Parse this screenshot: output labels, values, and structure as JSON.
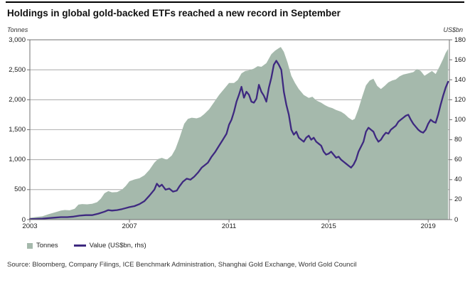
{
  "header": {
    "title": "Holdings in global gold-backed ETFs reached a new record in September"
  },
  "axes": {
    "left_unit": "Tonnes",
    "right_unit": "US$bn"
  },
  "legend": {
    "items": [
      {
        "label": "Tonnes",
        "swatch": "area-square"
      },
      {
        "label": "Value (US$bn, rhs)",
        "swatch": "line-dash"
      }
    ]
  },
  "source": "Source: Bloomberg, Company Filings, ICE Benchmark Administration, Shanghai Gold Exchange, World Gold Council",
  "colors": {
    "area": "#a5b9ac",
    "line": "#3e2980",
    "grid": "#9a9a9a",
    "axis": "#707070"
  },
  "chart_data": {
    "type": "area+line",
    "title": "Holdings in global gold-backed ETFs reached a new record in September",
    "x_range": [
      2003,
      2019.85
    ],
    "x_ticks": [
      2003,
      2007,
      2011,
      2015,
      2019
    ],
    "x_tick_labels": [
      "2003",
      "2007",
      "2011",
      "2015",
      "2019"
    ],
    "grid": "horizontal-only",
    "legend_position": "bottom-left",
    "left_axis": {
      "label": "Tonnes",
      "range": [
        0,
        3000
      ],
      "tick_step": 500,
      "tick_labels": [
        "0",
        "500",
        "1,000",
        "1,500",
        "2,000",
        "2,500",
        "3,000"
      ]
    },
    "right_axis": {
      "label": "US$bn",
      "range": [
        0,
        180
      ],
      "tick_step": 20,
      "tick_labels": [
        "0",
        "20",
        "40",
        "60",
        "80",
        "100",
        "120",
        "140",
        "160",
        "180"
      ]
    },
    "series": [
      {
        "name": "Tonnes",
        "type": "area",
        "axis": "left",
        "points": [
          [
            2003.0,
            30
          ],
          [
            2003.25,
            45
          ],
          [
            2003.5,
            55
          ],
          [
            2003.75,
            90
          ],
          [
            2004.0,
            120
          ],
          [
            2004.25,
            150
          ],
          [
            2004.4,
            160
          ],
          [
            2004.6,
            155
          ],
          [
            2004.8,
            180
          ],
          [
            2004.95,
            250
          ],
          [
            2005.1,
            260
          ],
          [
            2005.3,
            255
          ],
          [
            2005.5,
            265
          ],
          [
            2005.7,
            290
          ],
          [
            2005.85,
            350
          ],
          [
            2006.0,
            440
          ],
          [
            2006.15,
            475
          ],
          [
            2006.3,
            455
          ],
          [
            2006.5,
            460
          ],
          [
            2006.7,
            500
          ],
          [
            2006.85,
            560
          ],
          [
            2007.0,
            640
          ],
          [
            2007.2,
            670
          ],
          [
            2007.4,
            690
          ],
          [
            2007.6,
            740
          ],
          [
            2007.8,
            830
          ],
          [
            2008.0,
            950
          ],
          [
            2008.15,
            1010
          ],
          [
            2008.3,
            1030
          ],
          [
            2008.5,
            1000
          ],
          [
            2008.7,
            1070
          ],
          [
            2008.85,
            1180
          ],
          [
            2009.0,
            1350
          ],
          [
            2009.2,
            1600
          ],
          [
            2009.35,
            1680
          ],
          [
            2009.5,
            1700
          ],
          [
            2009.7,
            1690
          ],
          [
            2009.85,
            1710
          ],
          [
            2010.0,
            1760
          ],
          [
            2010.2,
            1840
          ],
          [
            2010.4,
            1960
          ],
          [
            2010.6,
            2080
          ],
          [
            2010.8,
            2180
          ],
          [
            2011.0,
            2280
          ],
          [
            2011.2,
            2280
          ],
          [
            2011.35,
            2330
          ],
          [
            2011.5,
            2440
          ],
          [
            2011.65,
            2480
          ],
          [
            2011.8,
            2490
          ],
          [
            2012.0,
            2520
          ],
          [
            2012.15,
            2560
          ],
          [
            2012.3,
            2550
          ],
          [
            2012.5,
            2610
          ],
          [
            2012.7,
            2760
          ],
          [
            2012.85,
            2820
          ],
          [
            2013.0,
            2860
          ],
          [
            2013.08,
            2880
          ],
          [
            2013.2,
            2800
          ],
          [
            2013.35,
            2620
          ],
          [
            2013.5,
            2400
          ],
          [
            2013.65,
            2280
          ],
          [
            2013.8,
            2180
          ],
          [
            2014.0,
            2080
          ],
          [
            2014.2,
            2030
          ],
          [
            2014.35,
            2050
          ],
          [
            2014.5,
            1990
          ],
          [
            2014.7,
            1950
          ],
          [
            2014.85,
            1910
          ],
          [
            2015.0,
            1880
          ],
          [
            2015.15,
            1860
          ],
          [
            2015.3,
            1830
          ],
          [
            2015.5,
            1800
          ],
          [
            2015.65,
            1760
          ],
          [
            2015.8,
            1700
          ],
          [
            2015.95,
            1660
          ],
          [
            2016.05,
            1680
          ],
          [
            2016.2,
            1850
          ],
          [
            2016.35,
            2050
          ],
          [
            2016.5,
            2240
          ],
          [
            2016.65,
            2320
          ],
          [
            2016.8,
            2350
          ],
          [
            2016.95,
            2230
          ],
          [
            2017.1,
            2180
          ],
          [
            2017.25,
            2230
          ],
          [
            2017.4,
            2290
          ],
          [
            2017.55,
            2320
          ],
          [
            2017.7,
            2340
          ],
          [
            2017.85,
            2390
          ],
          [
            2018.0,
            2420
          ],
          [
            2018.2,
            2440
          ],
          [
            2018.4,
            2460
          ],
          [
            2018.55,
            2510
          ],
          [
            2018.7,
            2480
          ],
          [
            2018.85,
            2400
          ],
          [
            2019.0,
            2440
          ],
          [
            2019.15,
            2480
          ],
          [
            2019.3,
            2430
          ],
          [
            2019.45,
            2550
          ],
          [
            2019.6,
            2680
          ],
          [
            2019.7,
            2780
          ],
          [
            2019.8,
            2850
          ]
        ]
      },
      {
        "name": "Value (US$bn, rhs)",
        "type": "line",
        "axis": "right",
        "points": [
          [
            2003.0,
            0.5
          ],
          [
            2003.25,
            0.7
          ],
          [
            2003.5,
            1
          ],
          [
            2003.75,
            1.5
          ],
          [
            2004.0,
            2
          ],
          [
            2004.25,
            2.5
          ],
          [
            2004.5,
            2.5
          ],
          [
            2004.75,
            3
          ],
          [
            2005.0,
            4
          ],
          [
            2005.25,
            4.5
          ],
          [
            2005.5,
            4.5
          ],
          [
            2005.75,
            6
          ],
          [
            2006.0,
            8
          ],
          [
            2006.15,
            9.5
          ],
          [
            2006.3,
            9
          ],
          [
            2006.5,
            9.5
          ],
          [
            2006.7,
            10.5
          ],
          [
            2006.85,
            11.5
          ],
          [
            2007.0,
            12.5
          ],
          [
            2007.2,
            13.5
          ],
          [
            2007.4,
            15.5
          ],
          [
            2007.6,
            18.5
          ],
          [
            2007.8,
            24
          ],
          [
            2008.0,
            30
          ],
          [
            2008.1,
            36
          ],
          [
            2008.2,
            33
          ],
          [
            2008.3,
            35
          ],
          [
            2008.45,
            30
          ],
          [
            2008.6,
            31
          ],
          [
            2008.75,
            28
          ],
          [
            2008.9,
            29
          ],
          [
            2009.0,
            33
          ],
          [
            2009.15,
            38
          ],
          [
            2009.3,
            41
          ],
          [
            2009.45,
            40
          ],
          [
            2009.6,
            43
          ],
          [
            2009.75,
            47
          ],
          [
            2009.9,
            52
          ],
          [
            2010.0,
            54
          ],
          [
            2010.15,
            57
          ],
          [
            2010.3,
            63
          ],
          [
            2010.45,
            68
          ],
          [
            2010.6,
            74
          ],
          [
            2010.75,
            80
          ],
          [
            2010.9,
            86
          ],
          [
            2011.0,
            95
          ],
          [
            2011.1,
            100
          ],
          [
            2011.2,
            108
          ],
          [
            2011.3,
            118
          ],
          [
            2011.4,
            125
          ],
          [
            2011.5,
            133
          ],
          [
            2011.6,
            122
          ],
          [
            2011.7,
            128
          ],
          [
            2011.8,
            125
          ],
          [
            2011.9,
            118
          ],
          [
            2012.0,
            117
          ],
          [
            2012.1,
            121
          ],
          [
            2012.2,
            135
          ],
          [
            2012.3,
            128
          ],
          [
            2012.4,
            124
          ],
          [
            2012.5,
            118
          ],
          [
            2012.6,
            132
          ],
          [
            2012.7,
            142
          ],
          [
            2012.8,
            155
          ],
          [
            2012.9,
            159
          ],
          [
            2013.0,
            155
          ],
          [
            2013.1,
            150
          ],
          [
            2013.2,
            128
          ],
          [
            2013.3,
            115
          ],
          [
            2013.4,
            105
          ],
          [
            2013.5,
            90
          ],
          [
            2013.6,
            85
          ],
          [
            2013.7,
            88
          ],
          [
            2013.8,
            82
          ],
          [
            2013.9,
            80
          ],
          [
            2014.0,
            78
          ],
          [
            2014.1,
            82
          ],
          [
            2014.2,
            84
          ],
          [
            2014.3,
            80
          ],
          [
            2014.4,
            82
          ],
          [
            2014.5,
            78
          ],
          [
            2014.6,
            76
          ],
          [
            2014.7,
            74
          ],
          [
            2014.8,
            68
          ],
          [
            2014.9,
            65
          ],
          [
            2015.0,
            66
          ],
          [
            2015.1,
            68
          ],
          [
            2015.2,
            65
          ],
          [
            2015.3,
            62
          ],
          [
            2015.4,
            63
          ],
          [
            2015.5,
            60
          ],
          [
            2015.6,
            58
          ],
          [
            2015.7,
            56
          ],
          [
            2015.8,
            54
          ],
          [
            2015.9,
            52
          ],
          [
            2016.0,
            55
          ],
          [
            2016.1,
            60
          ],
          [
            2016.2,
            68
          ],
          [
            2016.3,
            73
          ],
          [
            2016.4,
            78
          ],
          [
            2016.5,
            88
          ],
          [
            2016.6,
            92
          ],
          [
            2016.7,
            90
          ],
          [
            2016.8,
            88
          ],
          [
            2016.9,
            82
          ],
          [
            2017.0,
            78
          ],
          [
            2017.1,
            80
          ],
          [
            2017.2,
            84
          ],
          [
            2017.3,
            87
          ],
          [
            2017.4,
            86
          ],
          [
            2017.5,
            90
          ],
          [
            2017.6,
            92
          ],
          [
            2017.7,
            94
          ],
          [
            2017.8,
            98
          ],
          [
            2017.9,
            100
          ],
          [
            2018.0,
            102
          ],
          [
            2018.1,
            104
          ],
          [
            2018.2,
            105
          ],
          [
            2018.3,
            100
          ],
          [
            2018.4,
            96
          ],
          [
            2018.5,
            93
          ],
          [
            2018.6,
            90
          ],
          [
            2018.7,
            88
          ],
          [
            2018.8,
            87
          ],
          [
            2018.9,
            90
          ],
          [
            2019.0,
            96
          ],
          [
            2019.1,
            100
          ],
          [
            2019.2,
            98
          ],
          [
            2019.3,
            97
          ],
          [
            2019.4,
            105
          ],
          [
            2019.5,
            115
          ],
          [
            2019.6,
            124
          ],
          [
            2019.7,
            132
          ],
          [
            2019.8,
            138
          ]
        ]
      }
    ]
  }
}
